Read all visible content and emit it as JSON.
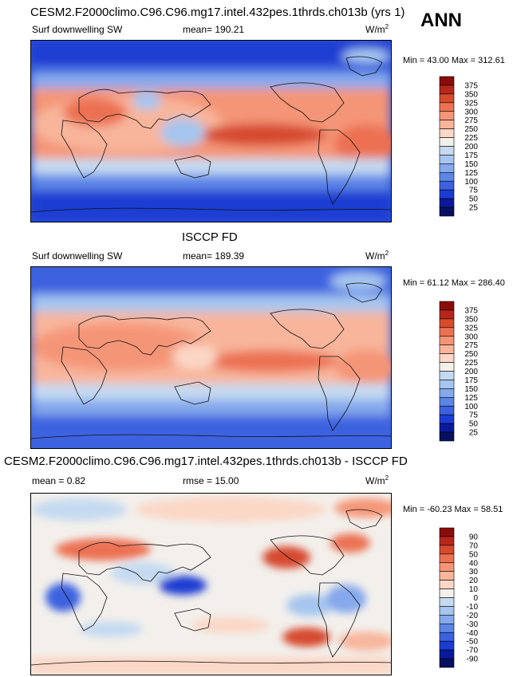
{
  "ann": "ANN",
  "panels": [
    {
      "id": "model",
      "title": "CESM2.F2000climo.C96.C96.mg17.intel.432pes.1thrds.ch013b (yrs 1)",
      "left_label": "Surf downwelling SW",
      "stat_label": "mean= 190.21",
      "units": "W/m",
      "units_sup": "2",
      "minmax": "Min =  43.00 Max = 312.61",
      "levels": [
        "375",
        "350",
        "325",
        "300",
        "275",
        "250",
        "225",
        "200",
        "175",
        "150",
        "125",
        "100",
        "75",
        "50",
        "25"
      ],
      "colors": [
        "#8c0c0c",
        "#b5271b",
        "#d64a2e",
        "#ec7152",
        "#f59577",
        "#f8b59b",
        "#fbd7c6",
        "#f3f0ec",
        "#c5daf1",
        "#a6c6ef",
        "#85a9ec",
        "#5c86e6",
        "#3c62df",
        "#1a3cd2",
        "#0b1a9c",
        "#081060"
      ]
    },
    {
      "id": "obs",
      "title": "ISCCP FD",
      "left_label": "Surf downwelling SW",
      "stat_label": "mean= 189.39",
      "units": "W/m",
      "units_sup": "2",
      "minmax": "Min =  61.12 Max = 286.40",
      "levels": [
        "375",
        "350",
        "325",
        "300",
        "275",
        "250",
        "225",
        "200",
        "175",
        "150",
        "125",
        "100",
        "75",
        "50",
        "25"
      ],
      "colors": [
        "#8c0c0c",
        "#b5271b",
        "#d64a2e",
        "#ec7152",
        "#f59577",
        "#f8b59b",
        "#fbd7c6",
        "#f3f0ec",
        "#c5daf1",
        "#a6c6ef",
        "#85a9ec",
        "#5c86e6",
        "#3c62df",
        "#1a3cd2",
        "#0b1a9c",
        "#081060"
      ]
    },
    {
      "id": "diff",
      "title": "CESM2.F2000climo.C96.C96.mg17.intel.432pes.1thrds.ch013b - ISCCP FD",
      "left_label": "mean =   0.82",
      "stat_label": "rmse =  15.00",
      "units": "W/m",
      "units_sup": "2",
      "minmax": "Min = -60.23 Max =  58.51",
      "levels": [
        "90",
        "70",
        "50",
        "40",
        "30",
        "20",
        "10",
        "0",
        "-10",
        "-20",
        "-30",
        "-40",
        "-50",
        "-70",
        "-90"
      ],
      "colors": [
        "#8c0c0c",
        "#b5271b",
        "#d64a2e",
        "#ec7152",
        "#f59577",
        "#f8b59b",
        "#fbd7c6",
        "#f3f0ec",
        "#c5daf1",
        "#a6c6ef",
        "#85a9ec",
        "#5c86e6",
        "#3c62df",
        "#1a3cd2",
        "#0b1a9c",
        "#081060"
      ]
    }
  ],
  "chart_data": [
    {
      "type": "heatmap",
      "title": "CESM2.F2000climo.C96.C96.mg17.intel.432pes.1thrds.ch013b (yrs 1)",
      "subtitle": "Surf downwelling SW",
      "mean": 190.21,
      "units": "W/m2",
      "min": 43.0,
      "max": 312.61,
      "levels": [
        25,
        50,
        75,
        100,
        125,
        150,
        175,
        200,
        225,
        250,
        275,
        300,
        325,
        350,
        375
      ]
    },
    {
      "type": "heatmap",
      "title": "ISCCP FD",
      "subtitle": "Surf downwelling SW",
      "mean": 189.39,
      "units": "W/m2",
      "min": 61.12,
      "max": 286.4,
      "levels": [
        25,
        50,
        75,
        100,
        125,
        150,
        175,
        200,
        225,
        250,
        275,
        300,
        325,
        350,
        375
      ]
    },
    {
      "type": "heatmap",
      "title": "CESM2.F2000climo.C96.C96.mg17.intel.432pes.1thrds.ch013b - ISCCP FD",
      "mean": 0.82,
      "rmse": 15.0,
      "units": "W/m2",
      "min": -60.23,
      "max": 58.51,
      "levels": [
        -90,
        -70,
        -50,
        -40,
        -30,
        -20,
        -10,
        0,
        10,
        20,
        30,
        40,
        50,
        70,
        90
      ]
    }
  ]
}
